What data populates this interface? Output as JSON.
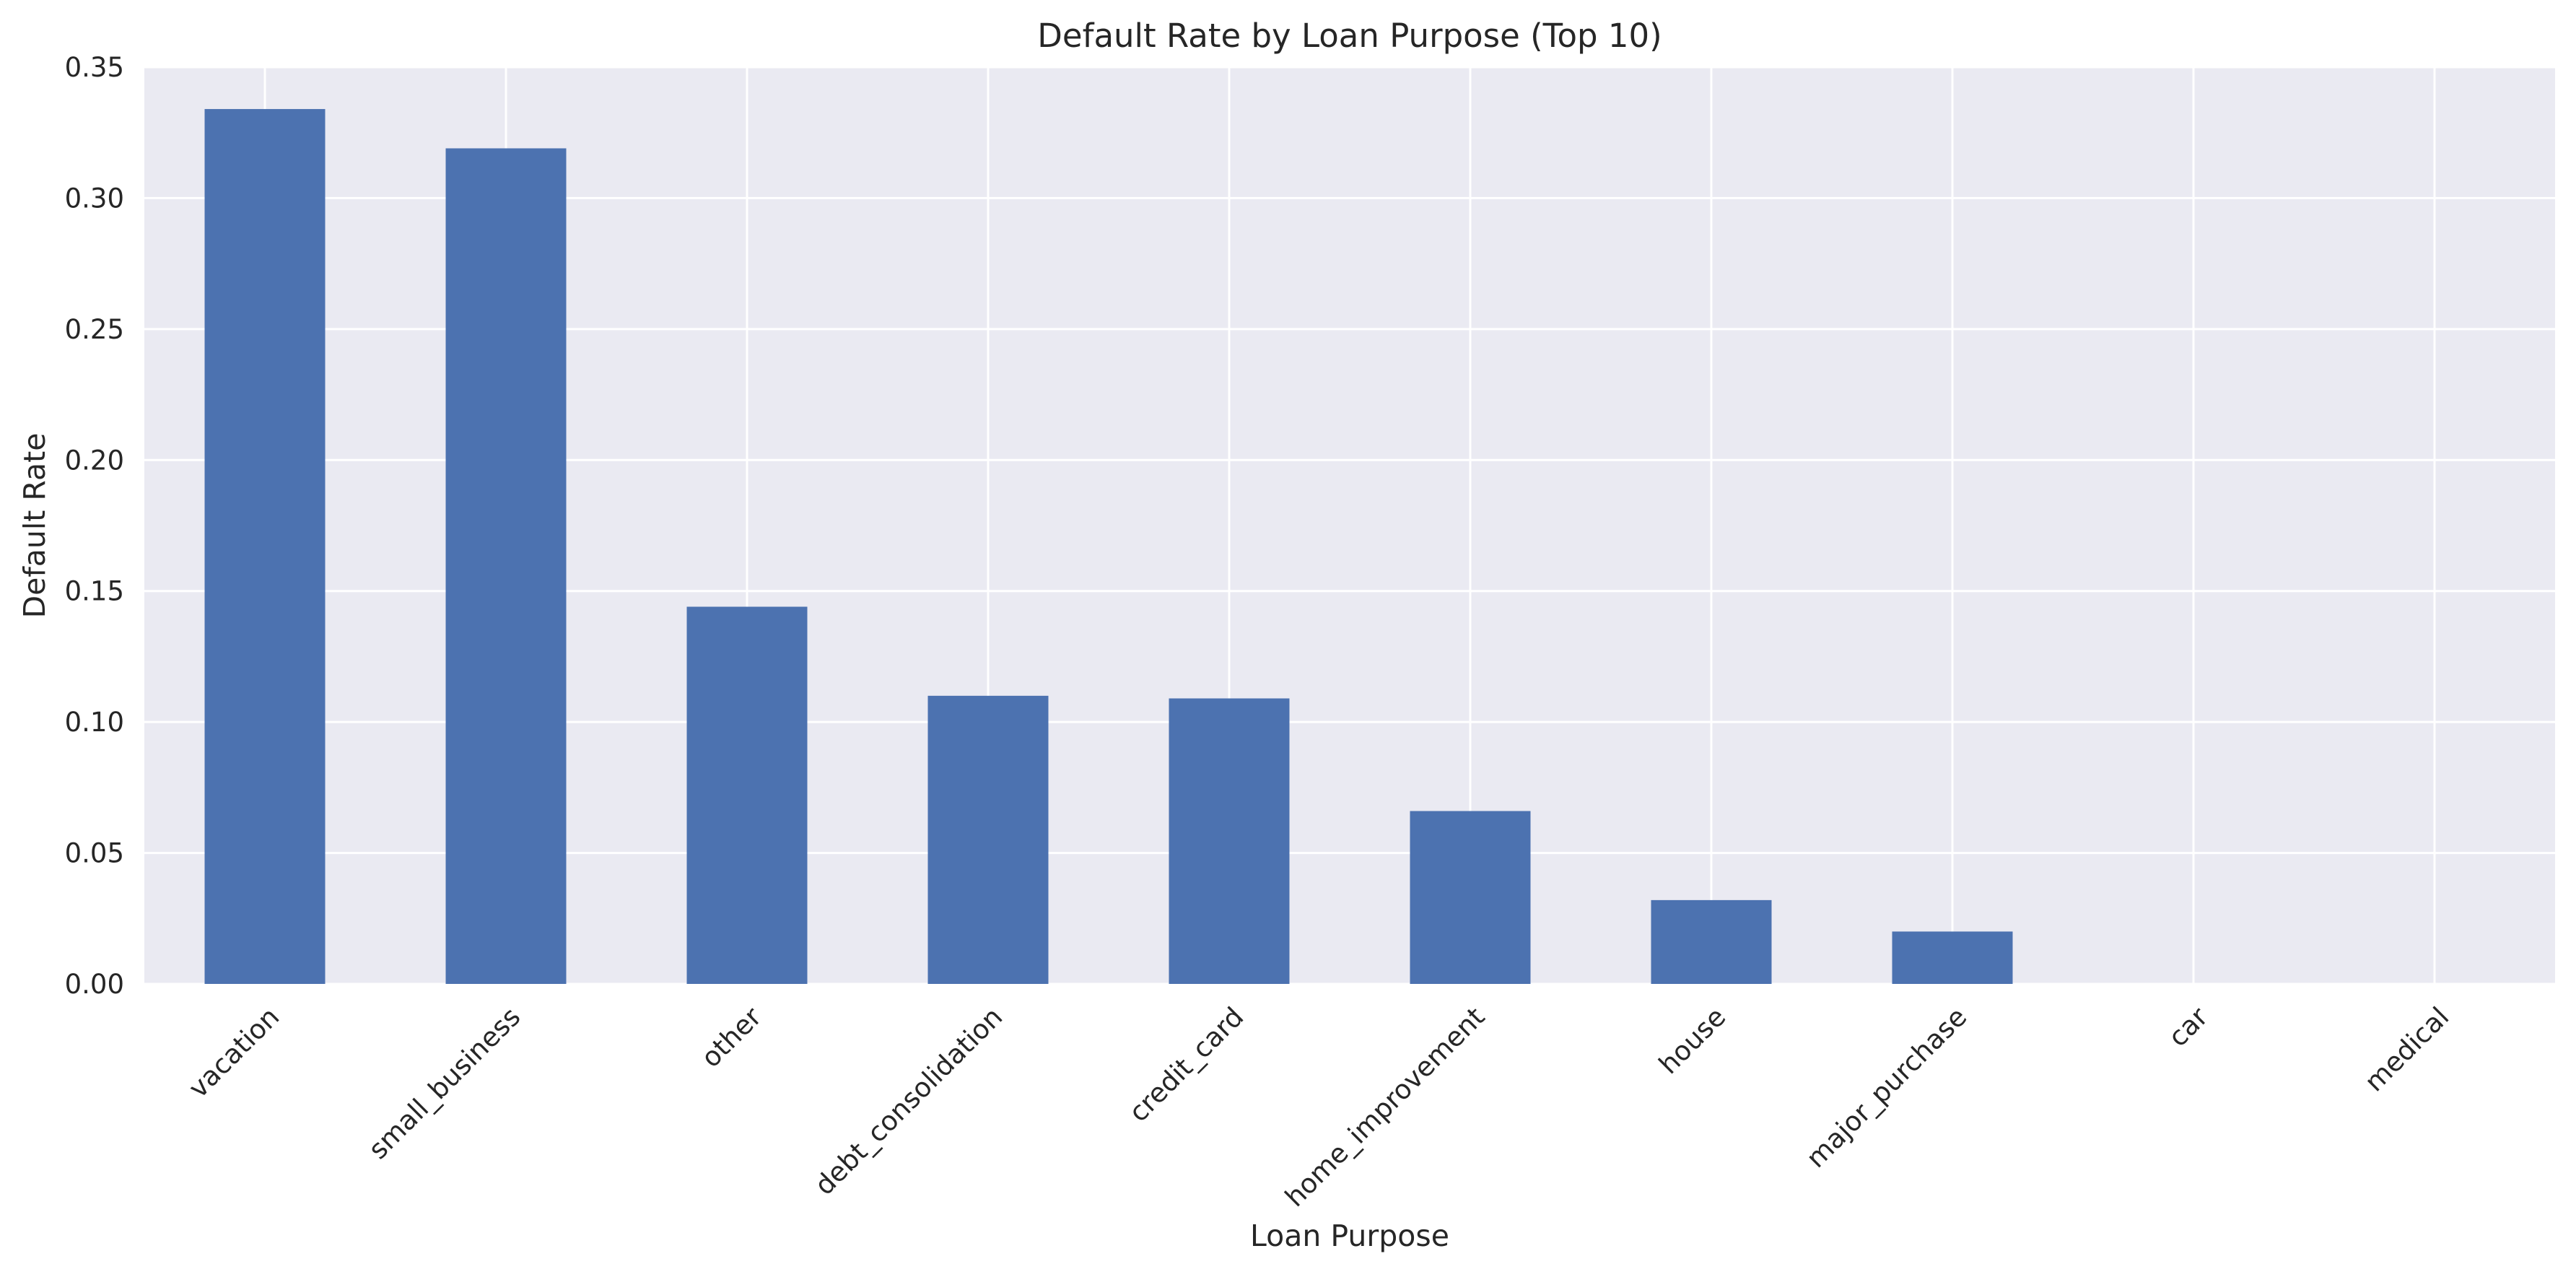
{
  "chart_data": {
    "type": "bar",
    "title": "Default Rate by Loan Purpose (Top 10)",
    "xlabel": "Loan Purpose",
    "ylabel": "Default Rate",
    "categories": [
      "vacation",
      "small_business",
      "other",
      "debt_consolidation",
      "credit_card",
      "home_improvement",
      "house",
      "major_purchase",
      "car",
      "medical"
    ],
    "values": [
      0.334,
      0.319,
      0.144,
      0.11,
      0.109,
      0.066,
      0.032,
      0.02,
      0.0,
      0.0
    ],
    "ylim": [
      0,
      0.35
    ],
    "yticks": [
      "0.00",
      "0.05",
      "0.10",
      "0.15",
      "0.20",
      "0.25",
      "0.30",
      "0.35"
    ],
    "grid": true,
    "bar_color": "#4c72b0",
    "plot_background": "#eaeaf2",
    "grid_color": "#ffffff"
  }
}
